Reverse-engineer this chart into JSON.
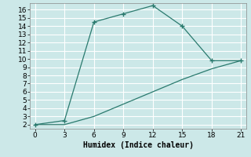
{
  "line1_x": [
    0,
    3,
    6,
    9,
    12,
    15,
    18,
    21
  ],
  "line1_y": [
    2,
    2.5,
    14.5,
    15.5,
    16.5,
    14,
    9.8,
    9.8
  ],
  "line2_x": [
    0,
    3,
    6,
    9,
    12,
    15,
    18,
    21
  ],
  "line2_y": [
    2,
    2.0,
    3.0,
    4.5,
    6.0,
    7.5,
    8.8,
    9.8
  ],
  "line_color": "#2a7a6e",
  "bg_color": "#cce8e8",
  "grid_color": "#ffffff",
  "xlabel": "Humidex (Indice chaleur)",
  "xlim": [
    -0.5,
    21.5
  ],
  "ylim": [
    1.5,
    16.8
  ],
  "xticks": [
    0,
    3,
    6,
    9,
    12,
    15,
    18,
    21
  ],
  "yticks": [
    2,
    3,
    4,
    5,
    6,
    7,
    8,
    9,
    10,
    11,
    12,
    13,
    14,
    15,
    16
  ],
  "xlabel_fontsize": 7,
  "tick_fontsize": 6.5
}
